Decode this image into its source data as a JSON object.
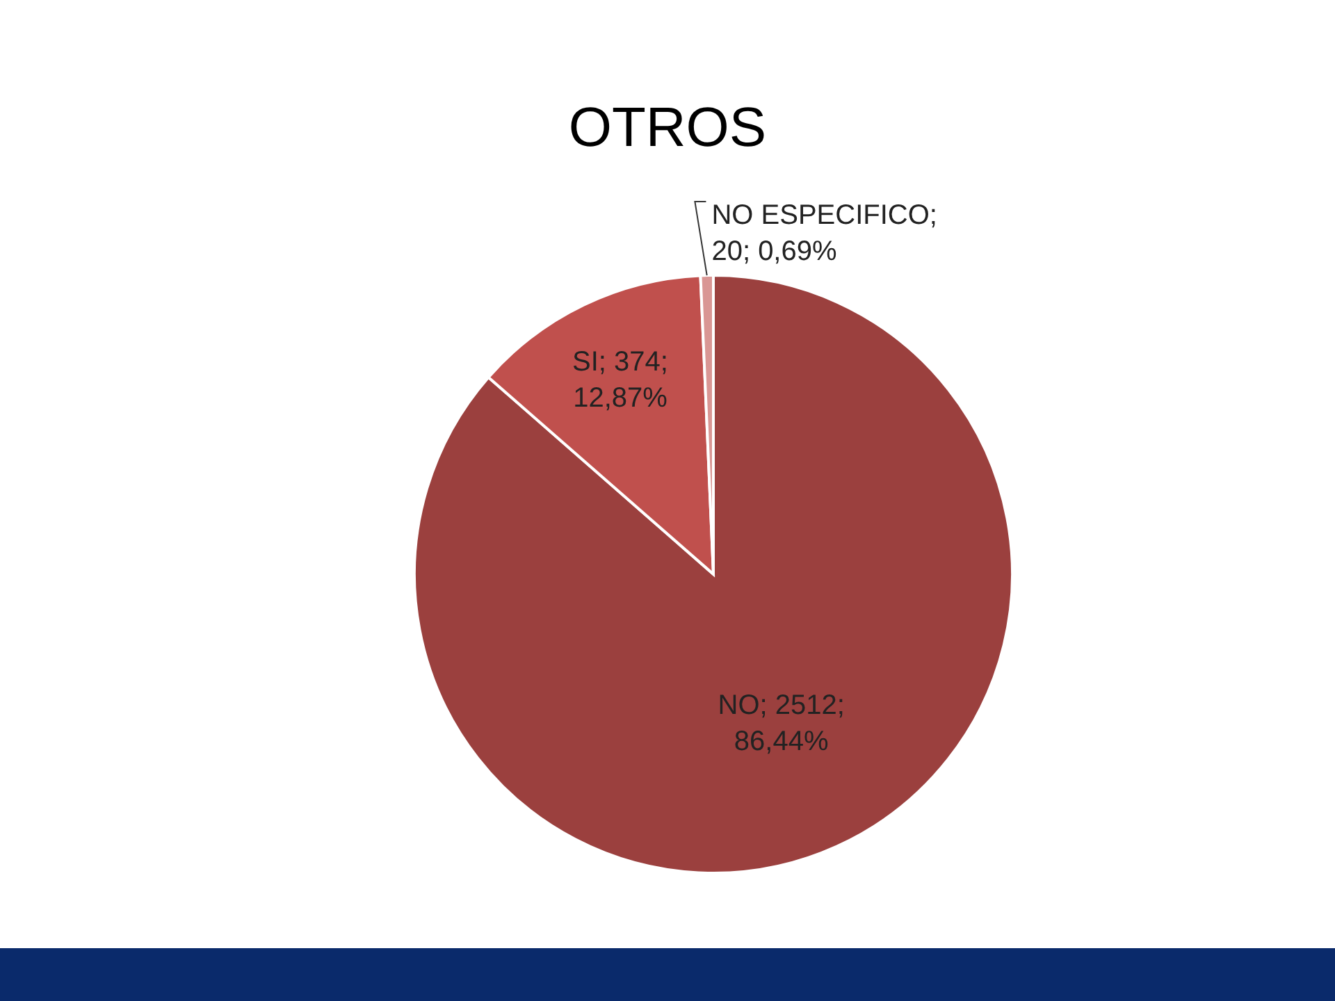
{
  "chart_data": {
    "type": "pie",
    "title": "OTROS",
    "categories": [
      "NO",
      "SI",
      "NO ESPECIFICO"
    ],
    "values": [
      2512,
      374,
      20
    ],
    "colors": [
      "#9b403e",
      "#c0504d",
      "#d99694"
    ],
    "value_labels": [
      "; 2512; 86,44%",
      "; 374; 12,87%",
      "; 20; 0,69%"
    ],
    "legend": false
  }
}
